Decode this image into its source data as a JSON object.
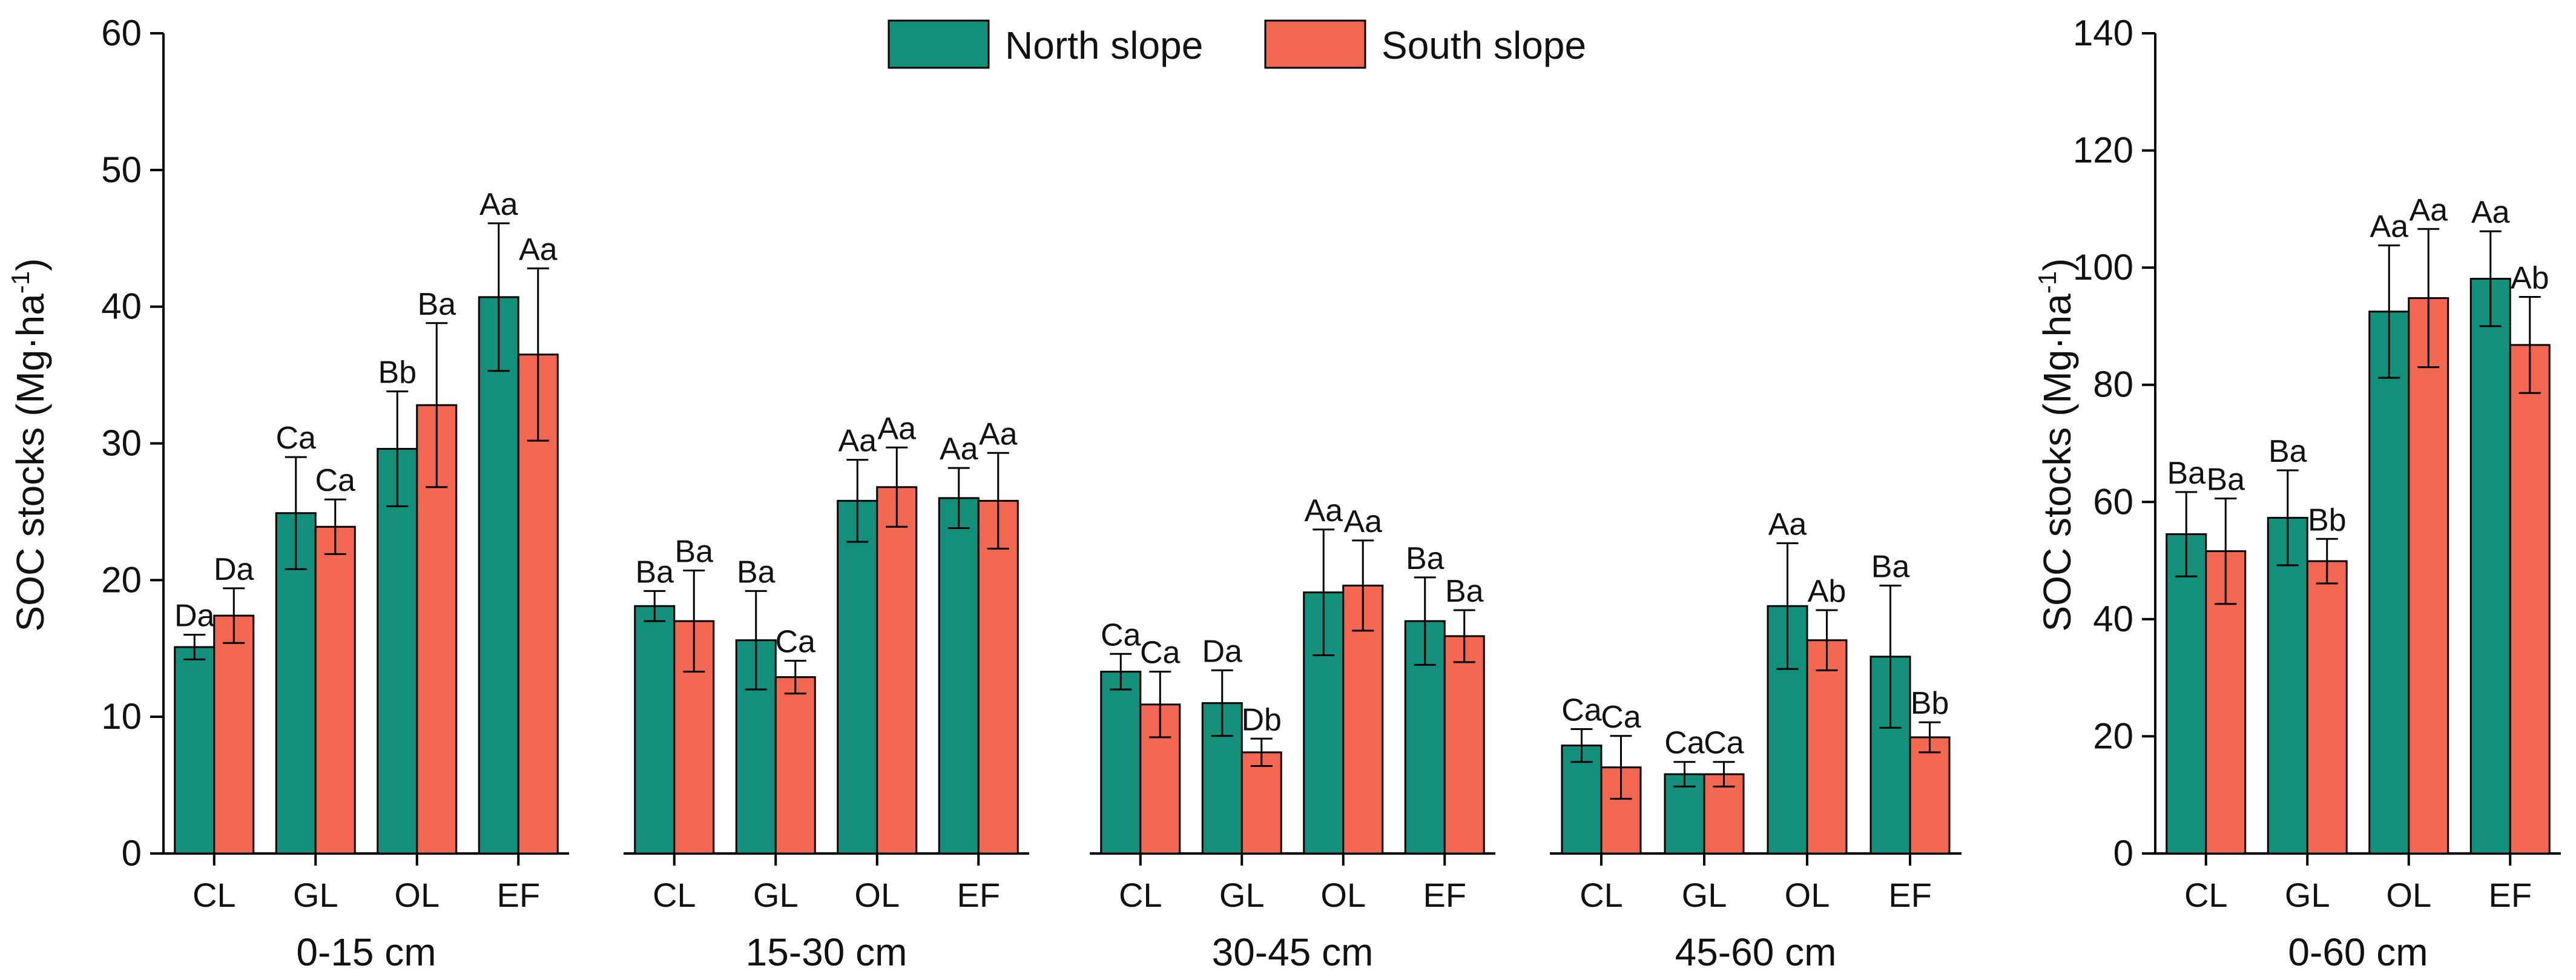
{
  "legend": {
    "north_label": "North slope",
    "south_label": "South slope",
    "north_color": "#13907c",
    "south_color": "#f2674f"
  },
  "chart_data": {
    "type": "bar",
    "ylabel_main": "SOC stocks (Mg·ha",
    "ylabel_sup": "-1",
    "ylabel_tail": ")",
    "series_names": [
      "North slope",
      "South slope"
    ],
    "categories": [
      "CL",
      "GL",
      "OL",
      "EF"
    ],
    "left_axis": {
      "ylim": [
        0,
        60
      ],
      "ticks": [
        "0",
        "10",
        "20",
        "30",
        "40",
        "50",
        "60"
      ]
    },
    "right_axis": {
      "ylim": [
        0,
        140
      ],
      "ticks": [
        "0",
        "20",
        "40",
        "60",
        "80",
        "100",
        "120",
        "140"
      ]
    },
    "panels": [
      {
        "xlabel": "0-15 cm",
        "axis": "left",
        "north": [
          15.1,
          24.9,
          29.6,
          40.7
        ],
        "north_err": [
          0.9,
          4.1,
          4.2,
          5.4
        ],
        "north_labels": [
          "Da",
          "Ca",
          "Bb",
          "Aa"
        ],
        "south": [
          17.4,
          23.9,
          32.8,
          36.5
        ],
        "south_err": [
          2.0,
          2.0,
          6.0,
          6.3
        ],
        "south_labels": [
          "Da",
          "Ca",
          "Ba",
          "Aa"
        ]
      },
      {
        "xlabel": "15-30 cm",
        "axis": "left",
        "north": [
          18.1,
          15.6,
          25.8,
          26.0
        ],
        "north_err": [
          1.1,
          3.6,
          3.0,
          2.2
        ],
        "north_labels": [
          "Ba",
          "Ba",
          "Aa",
          "Aa"
        ],
        "south": [
          17.0,
          12.9,
          26.8,
          25.8
        ],
        "south_err": [
          3.7,
          1.2,
          2.9,
          3.5
        ],
        "south_labels": [
          "Ba",
          "Ca",
          "Aa",
          "Aa"
        ]
      },
      {
        "xlabel": "30-45 cm",
        "axis": "left",
        "north": [
          13.3,
          11.0,
          19.1,
          17.0
        ],
        "north_err": [
          1.3,
          2.4,
          4.6,
          3.2
        ],
        "north_labels": [
          "Ca",
          "Da",
          "Aa",
          "Ba"
        ],
        "south": [
          10.9,
          7.4,
          19.6,
          15.9
        ],
        "south_err": [
          2.4,
          1.0,
          3.3,
          1.9
        ],
        "south_labels": [
          "Ca",
          "Db",
          "Aa",
          "Ba"
        ]
      },
      {
        "xlabel": "45-60 cm",
        "axis": "left",
        "north": [
          7.9,
          5.8,
          18.1,
          14.4
        ],
        "north_err": [
          1.2,
          0.9,
          4.6,
          5.2
        ],
        "north_labels": [
          "Ca",
          "Ca",
          "Aa",
          "Ba"
        ],
        "south": [
          6.3,
          5.8,
          15.6,
          8.5
        ],
        "south_err": [
          2.3,
          0.9,
          2.2,
          1.1
        ],
        "south_labels": [
          "Ca",
          "Ca",
          "Ab",
          "Bb"
        ]
      },
      {
        "xlabel": "0-60 cm",
        "axis": "right",
        "north": [
          54.5,
          57.3,
          92.5,
          98.1
        ],
        "north_err": [
          7.2,
          8.1,
          11.3,
          8.1
        ],
        "north_labels": [
          "Ba",
          "Ba",
          "Aa",
          "Aa"
        ],
        "south": [
          51.6,
          49.9,
          94.8,
          86.8
        ],
        "south_err": [
          9.0,
          3.8,
          11.8,
          8.2
        ],
        "south_labels": [
          "Ba",
          "Bb",
          "Aa",
          "Ab"
        ]
      }
    ]
  }
}
